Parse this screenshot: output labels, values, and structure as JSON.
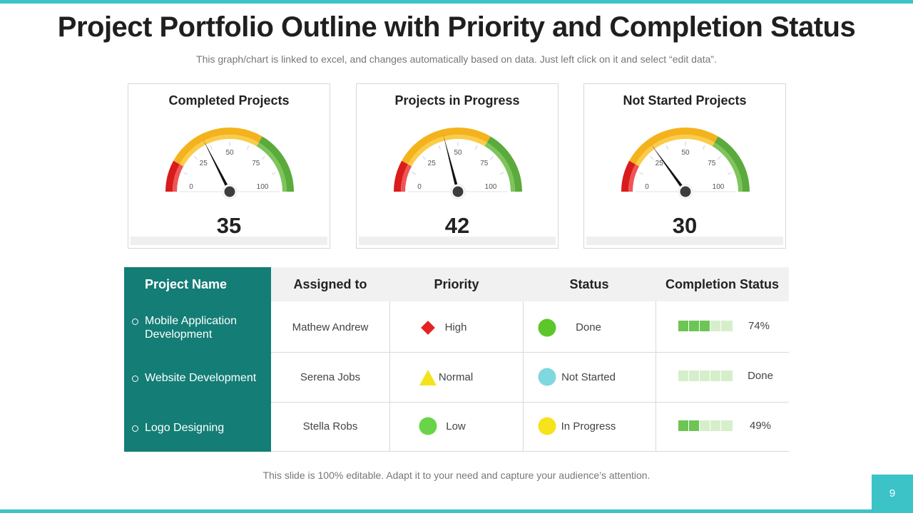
{
  "title": "Project Portfolio Outline with Priority and Completion Status",
  "subtitle": "This graph/chart is linked to excel, and changes automatically based on data. Just left click on it and select “edit data”.",
  "chart_data": [
    {
      "type": "gauge",
      "title": "Completed Projects",
      "value": 35,
      "range": [
        0,
        100
      ],
      "ticks": [
        "0",
        "25",
        "50",
        "75",
        "100"
      ],
      "value_label": "35"
    },
    {
      "type": "gauge",
      "title": "Projects in Progress",
      "value": 42,
      "range": [
        0,
        100
      ],
      "ticks": [
        "0",
        "25",
        "50",
        "75",
        "100"
      ],
      "value_label": "42"
    },
    {
      "type": "gauge",
      "title": "Not Started Projects",
      "value": 30,
      "range": [
        0,
        100
      ],
      "ticks": [
        "0",
        "25",
        "50",
        "75",
        "100"
      ],
      "value_label": "30"
    }
  ],
  "gauge_colors": {
    "red": "#d91b1b",
    "red_light": "#ef5555",
    "amber": "#f4b21c",
    "amber_light": "#fbcc4a",
    "green": "#5aaa3c",
    "green_light": "#7dc45a",
    "needle": "#111111",
    "hub": "#3d3d3d"
  },
  "table": {
    "headers": {
      "name": "Project Name",
      "assigned": "Assigned to",
      "priority": "Priority",
      "status": "Status",
      "completion": "Completion Status"
    },
    "rows": [
      {
        "name": "Mobile Application Development",
        "assigned": "Mathew Andrew",
        "priority": "High",
        "priority_shape": "diamond",
        "priority_color": "#e52322",
        "status": "Done",
        "status_color": "#5bc72b",
        "completion_label": "74%",
        "completion_filled": 3
      },
      {
        "name": "Website Development",
        "assigned": "Serena Jobs",
        "priority": "Normal",
        "priority_shape": "triangle",
        "priority_color": "#f3e31a",
        "status": "Not Started",
        "status_color": "#7fd7df",
        "completion_label": "Done",
        "completion_filled": 0
      },
      {
        "name": "Logo Designing",
        "assigned": "Stella Robs",
        "priority": "Low",
        "priority_shape": "circle",
        "priority_color": "#6ad449",
        "status": "In Progress",
        "status_color": "#f6e31b",
        "completion_label": "49%",
        "completion_filled": 2
      }
    ],
    "completion_segments": 5,
    "bar_color_filled": "#6cc554",
    "bar_color_empty": "#d5efcb",
    "name_col_color": "#137d76"
  },
  "footer": "This slide is 100% editable. Adapt it to your need and capture your audience’s attention.",
  "page_number": "9"
}
